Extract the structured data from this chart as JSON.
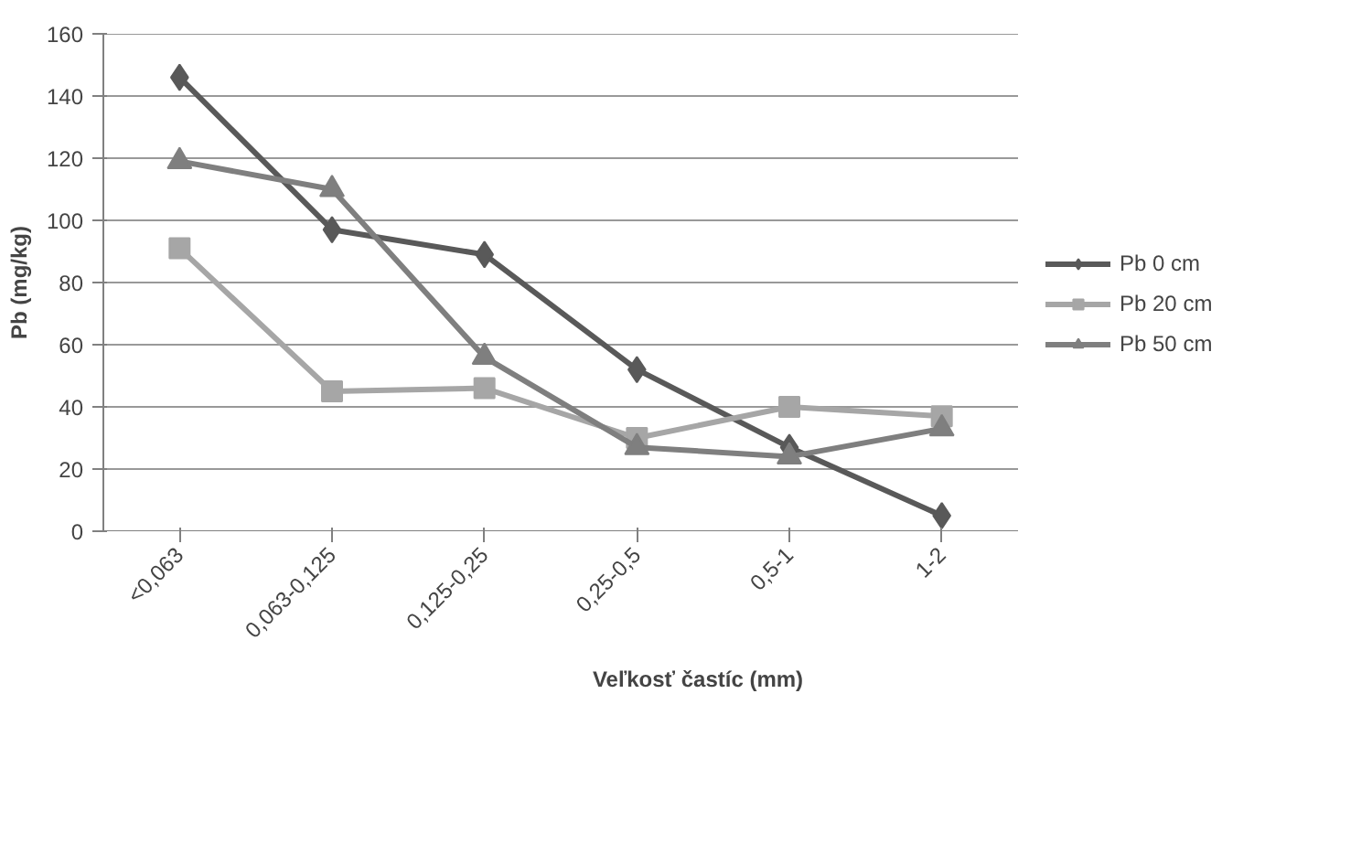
{
  "chart_data": {
    "type": "line",
    "xlabel": "Veľkosť častíc (mm)",
    "ylabel": "Pb (mg/kg)",
    "categories": [
      "<0,063",
      "0,063-0,125",
      "0,125-0,25",
      "0,25-0,5",
      "0,5-1",
      "1-2"
    ],
    "series": [
      {
        "name": "Pb 0 cm",
        "color": "#595959",
        "marker": "diamond",
        "values": [
          146,
          97,
          89,
          52,
          27,
          5
        ]
      },
      {
        "name": "Pb 20 cm",
        "color": "#a6a6a6",
        "marker": "square",
        "values": [
          91,
          45,
          46,
          30,
          40,
          37
        ]
      },
      {
        "name": "Pb 50 cm",
        "color": "#7f7f7f",
        "marker": "triangle",
        "values": [
          119,
          110,
          56,
          27,
          24,
          33
        ]
      }
    ],
    "ylim": [
      0,
      160
    ],
    "yticks": [
      0,
      20,
      40,
      60,
      80,
      100,
      120,
      140,
      160
    ],
    "grid": "y",
    "legend": "right"
  }
}
